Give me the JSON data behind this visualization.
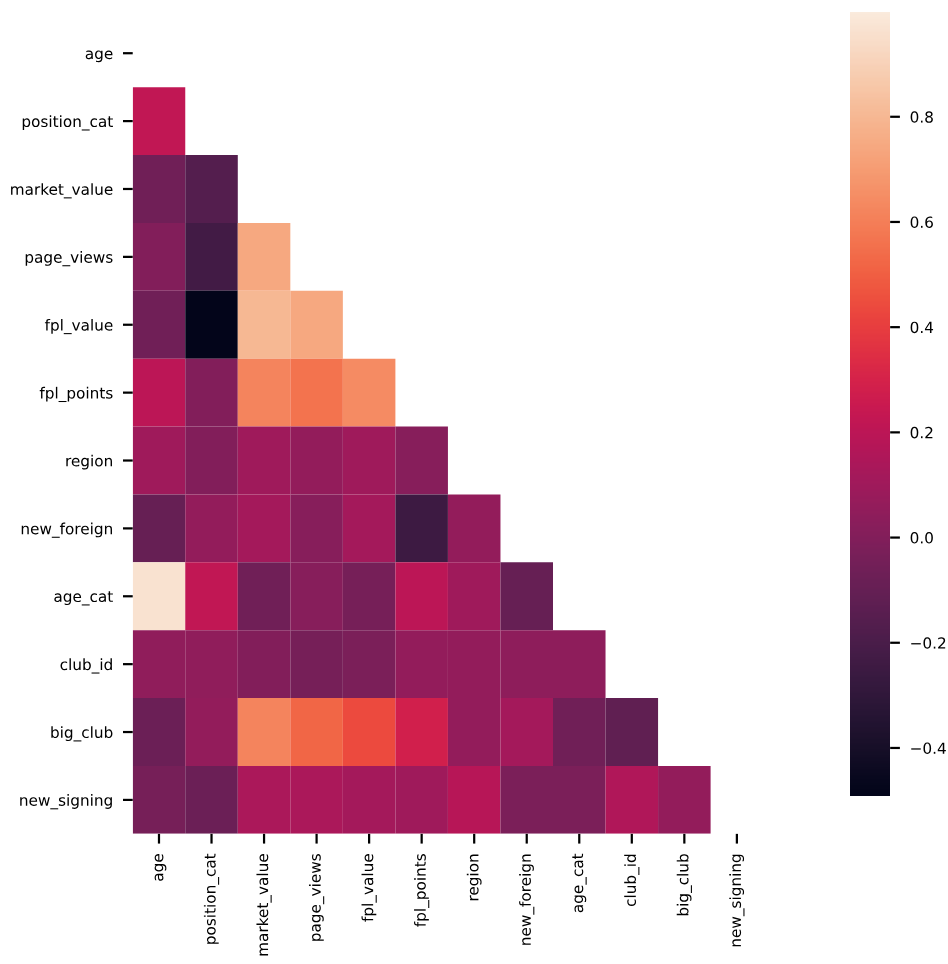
{
  "chart_data": {
    "type": "heatmap",
    "categories": [
      "age",
      "position_cat",
      "market_value",
      "page_views",
      "fpl_value",
      "fpl_points",
      "region",
      "new_foreign",
      "age_cat",
      "club_id",
      "big_club",
      "new_signing"
    ],
    "y_categories": [
      "age",
      "position_cat",
      "market_value",
      "page_views",
      "fpl_value",
      "fpl_points",
      "region",
      "new_foreign",
      "age_cat",
      "club_id",
      "big_club",
      "new_signing"
    ],
    "cells": [
      [
        null,
        null,
        null,
        null,
        null,
        null,
        null,
        null,
        null,
        null,
        null,
        null
      ],
      [
        0.22,
        null,
        null,
        null,
        null,
        null,
        null,
        null,
        null,
        null,
        null,
        null
      ],
      [
        -0.06,
        -0.16,
        null,
        null,
        null,
        null,
        null,
        null,
        null,
        null,
        null,
        null
      ],
      [
        0.0,
        -0.23,
        0.74,
        null,
        null,
        null,
        null,
        null,
        null,
        null,
        null,
        null
      ],
      [
        -0.06,
        -0.49,
        0.8,
        0.74,
        null,
        null,
        null,
        null,
        null,
        null,
        null,
        null
      ],
      [
        0.2,
        0.0,
        0.62,
        0.56,
        0.64,
        null,
        null,
        null,
        null,
        null,
        null,
        null
      ],
      [
        0.1,
        0.0,
        0.1,
        0.06,
        0.1,
        0.02,
        null,
        null,
        null,
        null,
        null,
        null
      ],
      [
        -0.1,
        0.06,
        0.12,
        0.02,
        0.12,
        -0.25,
        0.06,
        null,
        null,
        null,
        null,
        null
      ],
      [
        0.96,
        0.22,
        -0.06,
        0.02,
        -0.04,
        0.2,
        0.1,
        -0.1,
        null,
        null,
        null,
        null
      ],
      [
        0.05,
        0.05,
        0.0,
        -0.04,
        -0.02,
        0.06,
        0.06,
        0.04,
        0.04,
        null,
        null,
        null
      ],
      [
        -0.08,
        0.06,
        0.62,
        0.52,
        0.44,
        0.28,
        0.06,
        0.12,
        -0.06,
        -0.12,
        null,
        null
      ],
      [
        -0.04,
        -0.08,
        0.14,
        0.14,
        0.12,
        0.1,
        0.18,
        -0.02,
        -0.02,
        0.16,
        0.06,
        null
      ]
    ],
    "clim": [
      -0.49,
      1.0
    ],
    "cticks": [
      {
        "value": -0.4,
        "label": "−0.4"
      },
      {
        "value": -0.2,
        "label": "−0.2"
      },
      {
        "value": 0,
        "label": "0.0"
      },
      0.2,
      0.4,
      0.6,
      0.8
    ]
  }
}
